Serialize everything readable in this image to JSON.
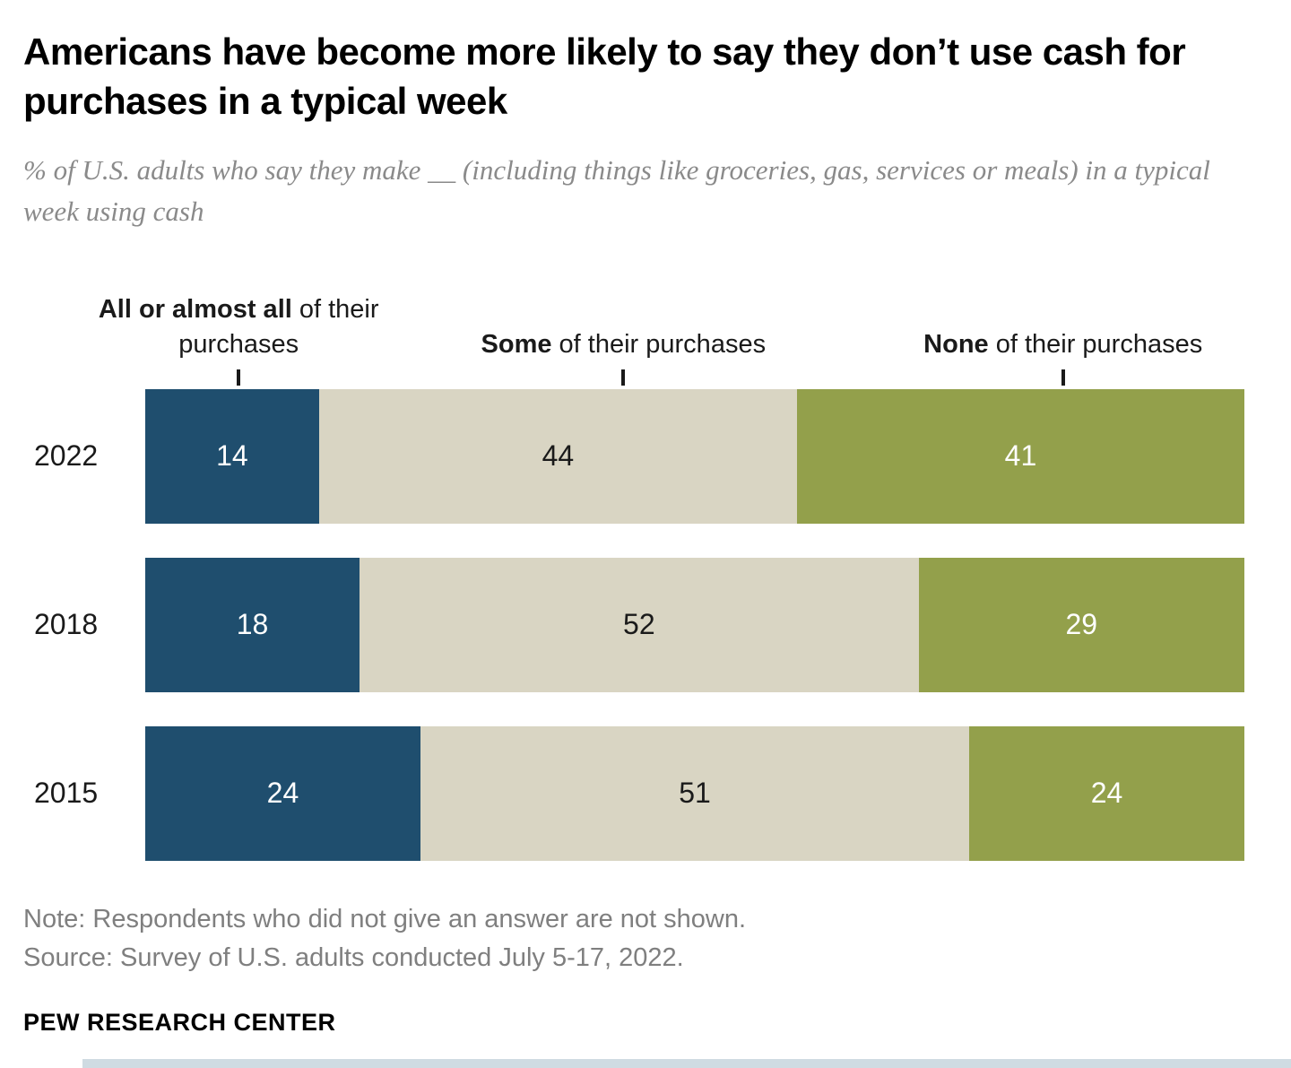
{
  "header": {
    "title": "Americans have become more likely to say they don’t use cash for purchases in a typical week",
    "subtitle": "% of U.S. adults who say they make __ (including things like groceries, gas, services or meals) in a typical week using cash"
  },
  "chart_data": {
    "type": "bar",
    "stacked": true,
    "orientation": "horizontal",
    "categories": [
      "2022",
      "2018",
      "2015"
    ],
    "series": [
      {
        "name": "All or almost all of their purchases",
        "color": "#1F4E6E",
        "label_color": "#ffffff",
        "values": [
          14,
          18,
          24
        ]
      },
      {
        "name": "Some of their purchases",
        "color": "#D9D5C3",
        "label_color": "#1a1a1a",
        "values": [
          44,
          52,
          51
        ]
      },
      {
        "name": "None of their purchases",
        "color": "#93A04B",
        "label_color": "#ffffff",
        "values": [
          41,
          29,
          24
        ]
      }
    ],
    "column_labels": [
      {
        "bold": "All or almost all",
        "rest": " of their purchases",
        "center_pct": 8.5
      },
      {
        "bold": "Some",
        "rest": " of their purchases",
        "center_pct": 43.5
      },
      {
        "bold": "None",
        "rest": " of their purchases",
        "center_pct": 83.5
      }
    ],
    "xlim": [
      0,
      100
    ],
    "value_labels": true,
    "grid": false,
    "legend_position": "top-column-labels"
  },
  "notes": {
    "note": "Note: Respondents who did not give an answer are not shown.",
    "source": "Source: Survey of U.S. adults conducted July 5-17, 2022."
  },
  "footer": {
    "brand": "PEW RESEARCH CENTER"
  }
}
